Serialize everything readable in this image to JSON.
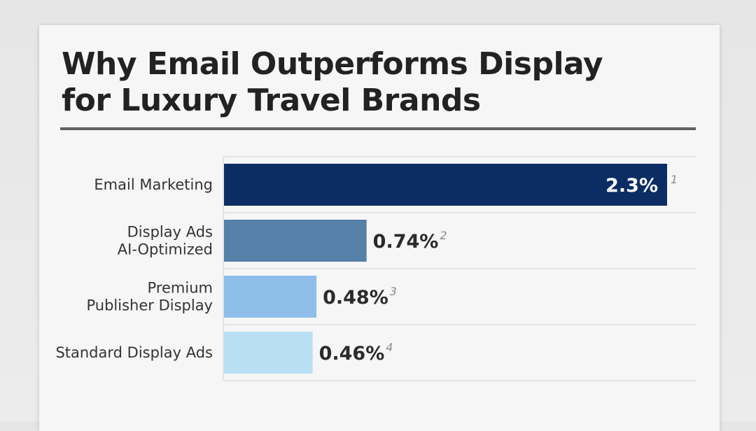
{
  "chart_data": {
    "type": "bar",
    "orientation": "horizontal",
    "title_lines": [
      "Why Email Outperforms Display",
      "for Luxury Travel Brands"
    ],
    "categories": [
      [
        "Email Marketing"
      ],
      [
        "Display Ads",
        "AI-Optimized"
      ],
      [
        "Premium",
        "Publisher Display"
      ],
      [
        "Standard Display Ads"
      ]
    ],
    "values": [
      2.3,
      0.74,
      0.48,
      0.46
    ],
    "value_labels": [
      "2.3%",
      "0.74%",
      "0.48%",
      "0.46%"
    ],
    "footnotes": [
      "1",
      "2",
      "3",
      "4"
    ],
    "colors": [
      "#0b2d63",
      "#5580a8",
      "#8ebdea",
      "#b9dff4"
    ],
    "xlabel": "",
    "ylabel": "",
    "grid": "horizontal row separators",
    "legend": "none"
  }
}
